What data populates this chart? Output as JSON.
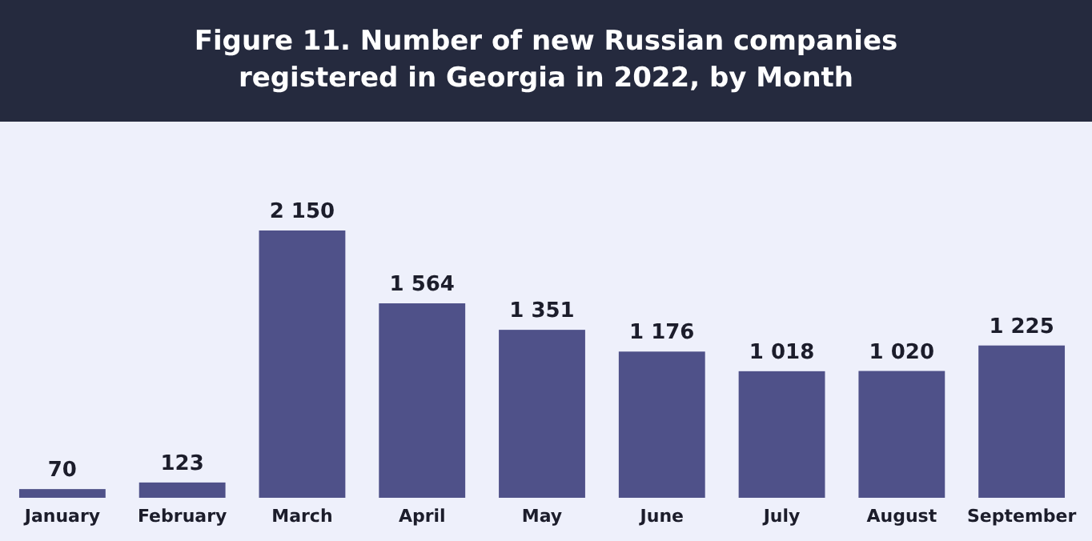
{
  "chart_data": {
    "type": "bar",
    "title": "Figure  11. Number of new Russian companies registered in Georgia in 2022, by Month",
    "categories": [
      "January",
      "February",
      "March",
      "April",
      "May",
      "June",
      "July",
      "August",
      "September"
    ],
    "values": [
      70,
      123,
      2150,
      1564,
      1351,
      1176,
      1018,
      1020,
      1225
    ],
    "value_labels": [
      "70",
      "123",
      "2 150",
      "1 564",
      "1 351",
      "1 176",
      "1 018",
      "1 020",
      "1 225"
    ],
    "color": "#4f5189"
  }
}
